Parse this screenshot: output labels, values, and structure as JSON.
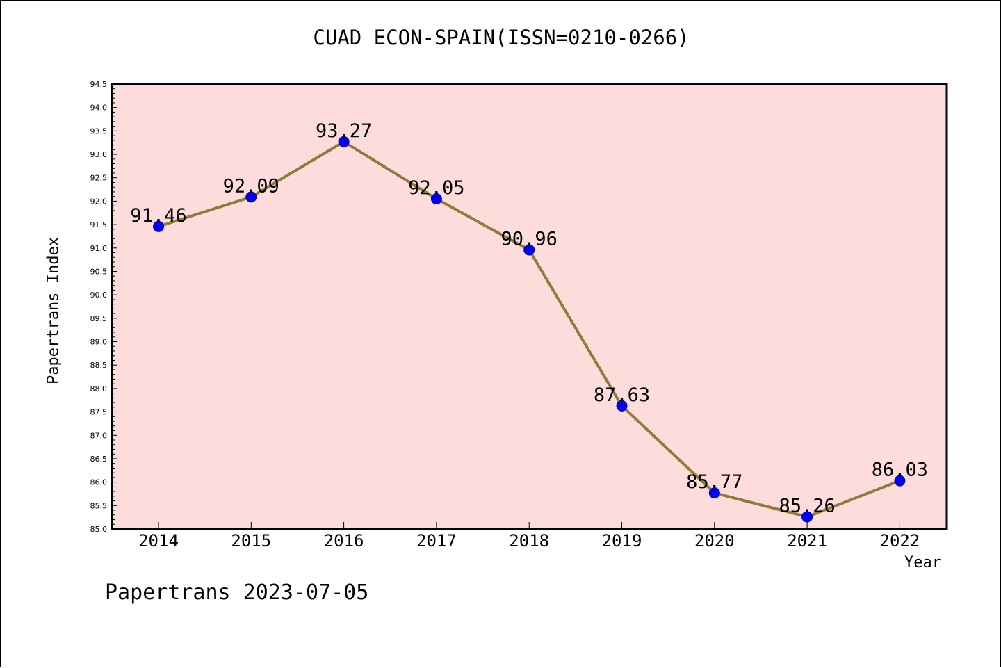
{
  "title": "CUAD ECON-SPAIN(ISSN=0210-0266)",
  "footer": "Papertrans 2023-07-05",
  "colors": {
    "plot_background": "#ffdcdc",
    "line": "#8b7d3a",
    "marker": "#0000ff"
  },
  "chart_data": {
    "type": "line",
    "title": "CUAD ECON-SPAIN(ISSN=0210-0266)",
    "xlabel": "Year",
    "ylabel": "Papertrans Index",
    "categories": [
      "2014",
      "2015",
      "2016",
      "2017",
      "2018",
      "2019",
      "2020",
      "2021",
      "2022"
    ],
    "values": [
      91.46,
      92.09,
      93.27,
      92.05,
      90.96,
      87.63,
      85.77,
      85.26,
      86.03
    ],
    "data_labels": [
      "91.46",
      "92.09",
      "93.27",
      "92.05",
      "90.96",
      "87.63",
      "85.77",
      "85.26",
      "86.03"
    ],
    "ylim": [
      85.0,
      94.5
    ],
    "y_ticks": [
      "85.0",
      "85.5",
      "86.0",
      "86.5",
      "87.0",
      "87.5",
      "88.0",
      "88.5",
      "89.0",
      "89.5",
      "90.0",
      "90.5",
      "91.0",
      "91.5",
      "92.0",
      "92.5",
      "93.0",
      "93.5",
      "94.0",
      "94.5"
    ],
    "grid": false,
    "legend": "none"
  }
}
